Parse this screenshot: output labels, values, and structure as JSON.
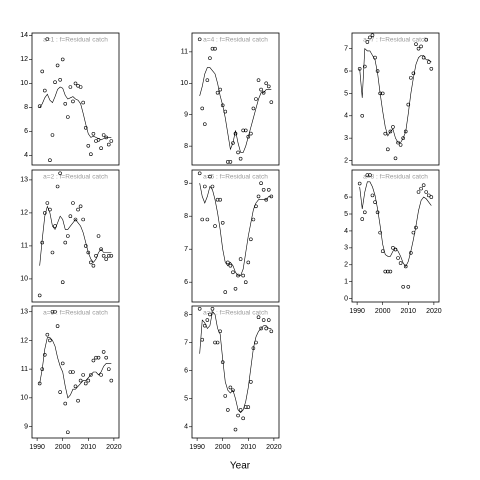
{
  "xlabel": "Year",
  "chart_data": [
    {
      "type": "scatter",
      "title": "a=1  :  f=Residual catch",
      "xlim": [
        1988,
        2022
      ],
      "ylim": [
        3.2,
        14.2
      ],
      "yticks": [
        4,
        6,
        8,
        10,
        12,
        14
      ],
      "x": [
        1991,
        1992,
        1993,
        1994,
        1995,
        1996,
        1997,
        1998,
        1999,
        2000,
        2001,
        2002,
        2003,
        2004,
        2005,
        2006,
        2007,
        2008,
        2009,
        2010,
        2011,
        2012,
        2013,
        2014,
        2015,
        2016,
        2017,
        2018,
        2019
      ],
      "values": [
        8.1,
        11.0,
        9.4,
        13.7,
        3.6,
        5.7,
        10.1,
        11.5,
        10.3,
        12.0,
        8.3,
        7.2,
        9.7,
        8.5,
        10.0,
        9.8,
        9.7,
        8.4,
        6.3,
        4.8,
        4.1,
        5.8,
        5.2,
        5.3,
        4.6,
        5.7,
        5.5,
        4.9,
        5.2
      ],
      "fit": [
        8.0,
        8.3,
        8.8,
        9.1,
        8.6,
        8.4,
        8.9,
        9.5,
        9.7,
        9.6,
        9.0,
        8.7,
        8.8,
        8.9,
        8.7,
        8.6,
        8.3,
        7.5,
        6.6,
        5.8,
        5.5,
        5.6,
        5.5,
        5.4,
        5.3,
        5.4,
        5.5,
        5.5,
        5.5
      ]
    },
    {
      "type": "scatter",
      "title": "a=2  :  f=Residual catch",
      "xlim": [
        1988,
        2022
      ],
      "ylim": [
        9.3,
        13.3
      ],
      "yticks": [
        10,
        11,
        12,
        13
      ],
      "x": [
        1991,
        1992,
        1993,
        1994,
        1995,
        1996,
        1997,
        1998,
        1999,
        2000,
        2001,
        2002,
        2003,
        2004,
        2005,
        2006,
        2007,
        2008,
        2009,
        2010,
        2011,
        2012,
        2013,
        2014,
        2015,
        2016,
        2017,
        2018,
        2019
      ],
      "values": [
        9.5,
        11.1,
        12.0,
        12.3,
        12.1,
        10.8,
        11.6,
        12.8,
        13.2,
        9.9,
        11.1,
        11.3,
        11.9,
        12.3,
        11.8,
        12.1,
        12.2,
        11.8,
        11.0,
        10.8,
        10.5,
        10.4,
        10.7,
        11.3,
        10.9,
        10.7,
        10.6,
        10.7,
        10.7
      ],
      "fit": [
        10.4,
        11.2,
        11.9,
        12.2,
        12.0,
        11.6,
        11.5,
        11.7,
        11.9,
        11.8,
        11.5,
        11.5,
        11.6,
        11.7,
        11.8,
        11.7,
        11.6,
        11.4,
        11.1,
        10.8,
        10.6,
        10.5,
        10.6,
        10.8,
        10.9,
        10.8,
        10.8,
        10.8,
        10.8
      ]
    },
    {
      "type": "scatter",
      "title": "a=3  :  f=Residual catch",
      "xlim": [
        1988,
        2022
      ],
      "ylim": [
        8.6,
        13.2
      ],
      "yticks": [
        9,
        10,
        11,
        12,
        13
      ],
      "xticks": [
        1990,
        2000,
        2010,
        2020
      ],
      "x": [
        1991,
        1992,
        1993,
        1994,
        1995,
        1996,
        1997,
        1998,
        1999,
        2000,
        2001,
        2002,
        2003,
        2004,
        2005,
        2006,
        2007,
        2008,
        2009,
        2010,
        2011,
        2012,
        2013,
        2014,
        2015,
        2016,
        2017,
        2018,
        2019
      ],
      "values": [
        10.5,
        11.0,
        11.5,
        12.2,
        12.0,
        13.0,
        13.0,
        12.5,
        10.2,
        11.2,
        9.8,
        8.8,
        10.9,
        10.9,
        10.4,
        9.9,
        10.6,
        10.8,
        10.5,
        10.6,
        10.8,
        11.3,
        11.4,
        11.4,
        10.8,
        11.6,
        11.4,
        11.0,
        10.6
      ],
      "fit": [
        10.5,
        11.0,
        11.7,
        12.1,
        12.1,
        12.0,
        11.8,
        11.4,
        11.1,
        10.9,
        10.4,
        10.0,
        10.1,
        10.3,
        10.3,
        10.4,
        10.5,
        10.6,
        10.6,
        10.7,
        10.8,
        10.9,
        10.9,
        10.8,
        10.9,
        11.1,
        11.2,
        11.2,
        11.2
      ]
    },
    {
      "type": "scatter",
      "title": "a=4  :  f=Residual catch",
      "xlim": [
        1988,
        2022
      ],
      "ylim": [
        7.4,
        11.6
      ],
      "yticks": [
        8,
        9,
        10,
        11
      ],
      "x": [
        1991,
        1992,
        1993,
        1994,
        1995,
        1996,
        1997,
        1998,
        1999,
        2000,
        2001,
        2002,
        2003,
        2004,
        2005,
        2006,
        2007,
        2008,
        2009,
        2010,
        2011,
        2012,
        2013,
        2014,
        2015,
        2016,
        2017,
        2018,
        2019
      ],
      "values": [
        11.4,
        9.2,
        8.7,
        10.1,
        10.8,
        11.1,
        11.1,
        9.7,
        9.8,
        9.3,
        9.1,
        7.5,
        7.5,
        8.1,
        8.4,
        7.8,
        7.6,
        8.5,
        8.5,
        8.3,
        8.4,
        9.2,
        9.5,
        10.1,
        9.8,
        9.7,
        10.0,
        9.9,
        9.4
      ],
      "fit": [
        9.6,
        9.9,
        10.3,
        10.5,
        10.5,
        10.4,
        10.3,
        10.0,
        9.6,
        9.3,
        8.9,
        8.4,
        7.9,
        8.1,
        8.5,
        8.1,
        7.8,
        7.8,
        8.0,
        8.3,
        8.6,
        8.9,
        9.2,
        9.5,
        9.7,
        9.7,
        9.8,
        9.8,
        9.8
      ]
    },
    {
      "type": "scatter",
      "title": "a=5  :  f=Residual catch",
      "xlim": [
        1988,
        2022
      ],
      "ylim": [
        5.4,
        9.4
      ],
      "yticks": [
        6,
        7,
        8,
        9
      ],
      "x": [
        1991,
        1992,
        1993,
        1994,
        1995,
        1996,
        1997,
        1998,
        1999,
        2000,
        2001,
        2002,
        2003,
        2004,
        2005,
        2006,
        2007,
        2008,
        2009,
        2010,
        2011,
        2012,
        2013,
        2014,
        2015,
        2016,
        2017,
        2018,
        2019
      ],
      "values": [
        9.3,
        7.9,
        8.9,
        7.9,
        9.2,
        8.9,
        7.7,
        8.5,
        8.5,
        7.8,
        5.7,
        6.6,
        6.5,
        6.3,
        5.8,
        6.2,
        6.7,
        6.2,
        6.0,
        6.6,
        7.3,
        7.9,
        8.3,
        8.6,
        9.0,
        8.8,
        8.5,
        8.8,
        8.6
      ],
      "fit": [
        9.0,
        8.6,
        8.4,
        8.6,
        8.9,
        8.8,
        8.5,
        8.1,
        7.6,
        7.0,
        6.6,
        6.5,
        6.6,
        6.5,
        6.3,
        6.2,
        6.2,
        6.4,
        6.9,
        7.4,
        7.8,
        8.2,
        8.4,
        8.5,
        8.5,
        8.5,
        8.5,
        8.6,
        8.6
      ]
    },
    {
      "type": "scatter",
      "title": "a=6  :  f=Residual catch",
      "xlim": [
        1988,
        2022
      ],
      "ylim": [
        3.6,
        8.3
      ],
      "yticks": [
        4,
        5,
        6,
        7,
        8
      ],
      "xticks": [
        1990,
        2000,
        2010,
        2020
      ],
      "x": [
        1991,
        1992,
        1993,
        1994,
        1995,
        1996,
        1997,
        1998,
        1999,
        2000,
        2001,
        2002,
        2003,
        2004,
        2005,
        2006,
        2007,
        2008,
        2009,
        2010,
        2011,
        2012,
        2013,
        2014,
        2015,
        2016,
        2017,
        2018,
        2019
      ],
      "values": [
        8.2,
        7.1,
        7.6,
        7.8,
        8.0,
        8.2,
        7.0,
        7.0,
        7.4,
        6.3,
        5.1,
        4.6,
        5.4,
        5.3,
        3.9,
        4.4,
        4.6,
        4.3,
        4.7,
        4.7,
        5.6,
        6.8,
        7.0,
        7.9,
        7.5,
        7.8,
        7.5,
        7.8,
        7.4
      ],
      "fit": [
        6.6,
        7.8,
        7.7,
        7.5,
        7.6,
        8.1,
        8.0,
        7.5,
        7.3,
        6.4,
        5.6,
        5.3,
        5.2,
        5.3,
        5.0,
        4.6,
        4.5,
        4.6,
        4.9,
        5.4,
        6.1,
        6.8,
        7.2,
        7.4,
        7.5,
        7.6,
        7.6,
        7.5,
        7.5
      ]
    },
    {
      "type": "scatter",
      "title": "a=7  :  f=Residual catch",
      "xlim": [
        1988,
        2022
      ],
      "ylim": [
        1.8,
        7.7
      ],
      "yticks": [
        2,
        3,
        4,
        5,
        6,
        7
      ],
      "x": [
        1991,
        1992,
        1993,
        1994,
        1995,
        1996,
        1997,
        1998,
        1999,
        2000,
        2001,
        2002,
        2003,
        2004,
        2005,
        2006,
        2007,
        2008,
        2009,
        2010,
        2011,
        2012,
        2013,
        2014,
        2015,
        2016,
        2017,
        2018,
        2019
      ],
      "values": [
        6.1,
        4.0,
        6.2,
        7.3,
        7.5,
        7.6,
        6.6,
        6.0,
        5.0,
        5.0,
        3.2,
        2.5,
        3.3,
        3.5,
        2.1,
        2.8,
        2.7,
        3.0,
        3.3,
        4.5,
        5.7,
        5.9,
        7.2,
        7.0,
        7.1,
        6.6,
        7.4,
        6.4,
        6.1
      ],
      "fit": [
        6.1,
        4.8,
        7.0,
        6.9,
        6.9,
        6.7,
        6.5,
        5.9,
        5.0,
        4.2,
        3.5,
        3.1,
        3.3,
        3.4,
        3.0,
        2.8,
        2.8,
        3.0,
        3.3,
        4.1,
        5.0,
        5.7,
        6.3,
        6.6,
        6.7,
        6.7,
        6.5,
        6.5,
        6.4
      ]
    },
    {
      "type": "scatter",
      "title": "a=8  :  f=Residual catch",
      "xlim": [
        1988,
        2022
      ],
      "ylim": [
        -0.2,
        7.6
      ],
      "yticks": [
        0,
        1,
        2,
        3,
        4,
        5,
        6
      ],
      "xticks": [
        1990,
        2000,
        2010,
        2020
      ],
      "x": [
        1991,
        1992,
        1993,
        1994,
        1995,
        1996,
        1997,
        1998,
        1999,
        2000,
        2001,
        2002,
        2003,
        2004,
        2005,
        2006,
        2007,
        2008,
        2009,
        2010,
        2011,
        2012,
        2013,
        2014,
        2015,
        2016,
        2017,
        2018,
        2019
      ],
      "values": [
        6.8,
        4.7,
        5.1,
        7.3,
        7.3,
        6.1,
        5.7,
        5.1,
        3.9,
        2.8,
        1.6,
        1.6,
        1.6,
        3.0,
        2.9,
        2.4,
        2.1,
        0.7,
        1.9,
        0.7,
        2.7,
        3.9,
        4.2,
        6.3,
        6.5,
        6.7,
        6.3,
        6.1,
        6.0
      ],
      "fit": [
        6.6,
        5.3,
        6.3,
        6.9,
        6.9,
        6.6,
        6.1,
        5.3,
        4.3,
        3.2,
        2.6,
        2.5,
        2.5,
        2.8,
        3.0,
        2.8,
        2.5,
        2.1,
        1.9,
        2.2,
        2.8,
        3.5,
        4.3,
        5.2,
        5.8,
        6.0,
        5.9,
        5.7,
        5.5
      ]
    }
  ]
}
